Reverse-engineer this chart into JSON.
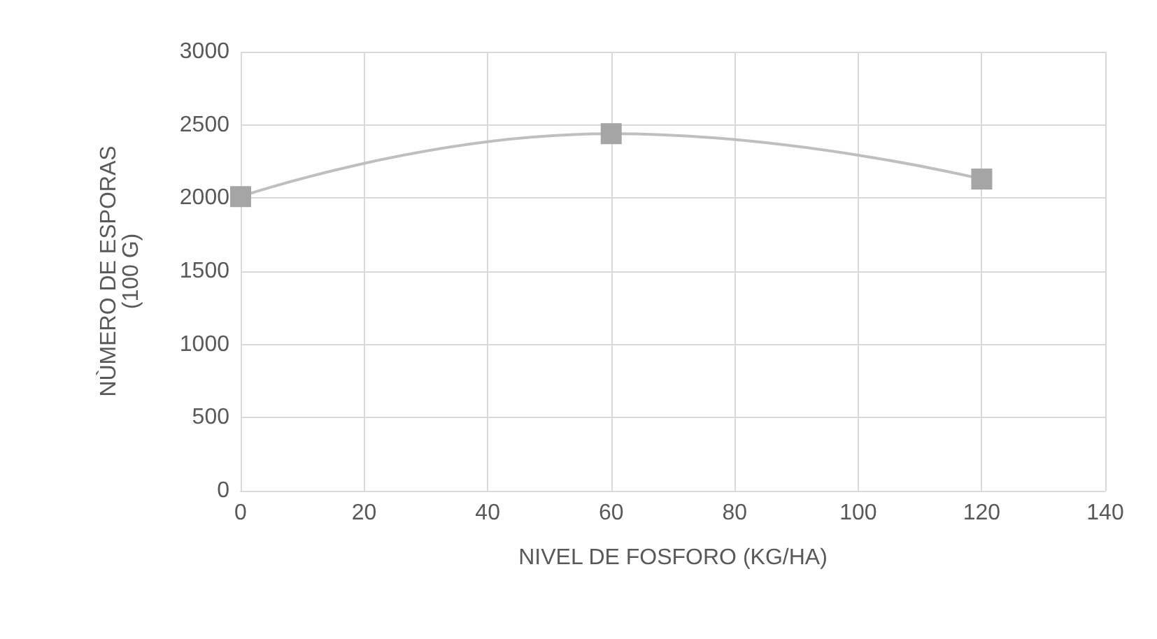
{
  "chart_data": {
    "type": "line",
    "xlabel": "NIVEL DE FOSFORO (KG/HA)",
    "ylabel": "NÙMERO DE ESPORAS\n(100 G)",
    "x": [
      0,
      60,
      120
    ],
    "series": [
      {
        "color": "#a5a5a5",
        "values": [
          2010,
          2440,
          2130
        ]
      }
    ],
    "xlim": [
      0,
      140
    ],
    "xticks": [
      0,
      20,
      40,
      60,
      80,
      100,
      120,
      140
    ],
    "ylim": [
      0,
      3000
    ],
    "yticks": [
      0,
      500,
      1000,
      1500,
      2000,
      2500,
      3000
    ],
    "grid": true,
    "marker": "square",
    "line_style": "solid"
  }
}
